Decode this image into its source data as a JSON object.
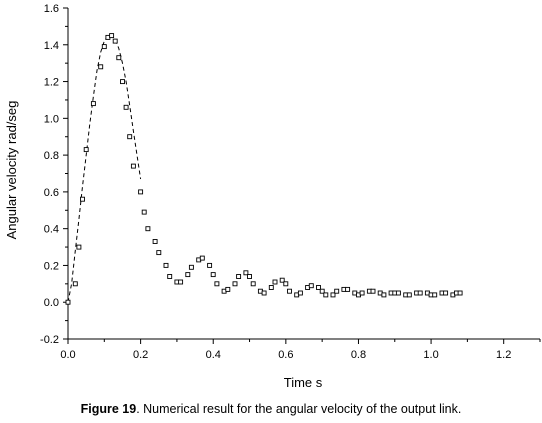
{
  "caption": {
    "label": "Figure 19",
    "text": ". Numerical result for the angular velocity of the output link."
  },
  "chart_data": {
    "type": "scatter",
    "title": "",
    "xlabel": "Time  s",
    "ylabel": "Angular velocity  rad/seg",
    "xlim": [
      0.0,
      1.3
    ],
    "ylim": [
      -0.2,
      1.6
    ],
    "x_ticks": [
      "0.0",
      "0.2",
      "0.4",
      "0.6",
      "0.8",
      "1.0",
      "1.2"
    ],
    "y_ticks": [
      "-0.2",
      "0.0",
      "0.2",
      "0.4",
      "0.6",
      "0.8",
      "1.0",
      "1.2",
      "1.4",
      "1.6"
    ],
    "grid": false,
    "series": [
      {
        "style": "dashed-line",
        "x": [
          0.0,
          0.01,
          0.02,
          0.03,
          0.04,
          0.05,
          0.06,
          0.07,
          0.08,
          0.09,
          0.1,
          0.11,
          0.12,
          0.13,
          0.14,
          0.15,
          0.16,
          0.17,
          0.18,
          0.19,
          0.2
        ],
        "y": [
          0.0,
          0.1,
          0.28,
          0.45,
          0.63,
          0.8,
          0.97,
          1.12,
          1.26,
          1.36,
          1.42,
          1.45,
          1.45,
          1.43,
          1.38,
          1.3,
          1.2,
          1.07,
          0.93,
          0.8,
          0.67
        ]
      },
      {
        "style": "square-markers",
        "x": [
          0.0,
          0.02,
          0.03,
          0.04,
          0.05,
          0.07,
          0.09,
          0.1,
          0.11,
          0.12,
          0.13,
          0.14,
          0.15,
          0.16,
          0.17,
          0.18,
          0.2,
          0.21,
          0.22,
          0.24,
          0.25,
          0.27,
          0.28,
          0.3,
          0.31,
          0.33,
          0.34,
          0.36,
          0.37,
          0.39,
          0.4,
          0.41,
          0.43,
          0.44,
          0.46,
          0.47,
          0.49,
          0.5,
          0.51,
          0.53,
          0.54,
          0.56,
          0.57,
          0.59,
          0.6,
          0.61,
          0.63,
          0.64,
          0.66,
          0.67,
          0.69,
          0.7,
          0.71,
          0.73,
          0.74,
          0.76,
          0.77,
          0.79,
          0.8,
          0.81,
          0.83,
          0.84,
          0.86,
          0.87,
          0.89,
          0.9,
          0.91,
          0.93,
          0.94,
          0.96,
          0.97,
          0.99,
          1.0,
          1.01,
          1.03,
          1.04,
          1.06,
          1.07,
          1.08
        ],
        "y": [
          0.0,
          0.1,
          0.3,
          0.56,
          0.83,
          1.08,
          1.28,
          1.39,
          1.44,
          1.45,
          1.42,
          1.33,
          1.2,
          1.06,
          0.9,
          0.74,
          0.6,
          0.49,
          0.4,
          0.33,
          0.27,
          0.2,
          0.14,
          0.11,
          0.11,
          0.15,
          0.19,
          0.23,
          0.24,
          0.2,
          0.15,
          0.1,
          0.06,
          0.07,
          0.1,
          0.14,
          0.16,
          0.14,
          0.1,
          0.06,
          0.05,
          0.08,
          0.11,
          0.12,
          0.1,
          0.06,
          0.04,
          0.05,
          0.08,
          0.09,
          0.08,
          0.06,
          0.04,
          0.04,
          0.06,
          0.07,
          0.07,
          0.05,
          0.04,
          0.05,
          0.06,
          0.06,
          0.05,
          0.04,
          0.05,
          0.05,
          0.05,
          0.04,
          0.04,
          0.05,
          0.05,
          0.05,
          0.04,
          0.04,
          0.05,
          0.05,
          0.04,
          0.05,
          0.05
        ]
      }
    ]
  }
}
